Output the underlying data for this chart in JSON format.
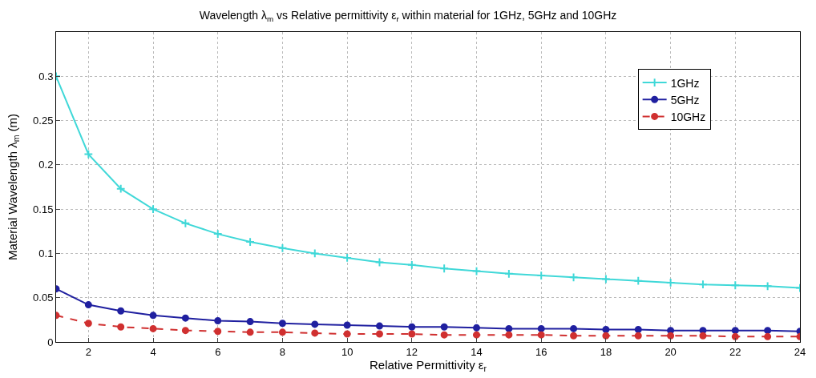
{
  "chart_data": {
    "type": "line",
    "title": "Wavelength λ$_{m}$ vs Relative permittivity ε$_{r}$ within material for 1GHz, 5GHz and 10GHz",
    "xlabel": "Relative Permittivity ε$_{r}$",
    "ylabel": "Material Wavelength λ$_{m}$ (m)",
    "x": [
      1,
      2,
      3,
      4,
      5,
      6,
      7,
      8,
      9,
      10,
      11,
      12,
      13,
      14,
      15,
      16,
      17,
      18,
      19,
      20,
      21,
      22,
      23,
      24
    ],
    "series": [
      {
        "name": "1GHz",
        "color": "#40d8d8",
        "marker": "cross",
        "line_style": "solid",
        "values": [
          0.3,
          0.212,
          0.173,
          0.15,
          0.134,
          0.122,
          0.113,
          0.106,
          0.1,
          0.095,
          0.09,
          0.087,
          0.083,
          0.08,
          0.077,
          0.075,
          0.073,
          0.071,
          0.069,
          0.067,
          0.065,
          0.064,
          0.063,
          0.061
        ]
      },
      {
        "name": "5GHz",
        "color": "#2020a0",
        "marker": "circle",
        "line_style": "solid",
        "values": [
          0.06,
          0.042,
          0.035,
          0.03,
          0.027,
          0.024,
          0.023,
          0.021,
          0.02,
          0.019,
          0.018,
          0.017,
          0.017,
          0.016,
          0.015,
          0.015,
          0.015,
          0.014,
          0.014,
          0.013,
          0.013,
          0.013,
          0.013,
          0.012
        ]
      },
      {
        "name": "10GHz",
        "color": "#d03030",
        "marker": "circle",
        "line_style": "dashed",
        "values": [
          0.03,
          0.021,
          0.017,
          0.015,
          0.013,
          0.012,
          0.011,
          0.011,
          0.01,
          0.009,
          0.009,
          0.009,
          0.008,
          0.008,
          0.008,
          0.008,
          0.007,
          0.007,
          0.007,
          0.007,
          0.007,
          0.006,
          0.006,
          0.006
        ]
      }
    ],
    "xlim": [
      1,
      24
    ],
    "xticks": [
      2,
      4,
      6,
      8,
      10,
      12,
      14,
      16,
      18,
      20,
      22,
      24
    ],
    "ylim": [
      0,
      0.35
    ],
    "yticks": [
      0,
      0.05,
      0.1,
      0.15,
      0.2,
      0.25,
      0.3
    ],
    "grid": true,
    "legend": "top right"
  }
}
